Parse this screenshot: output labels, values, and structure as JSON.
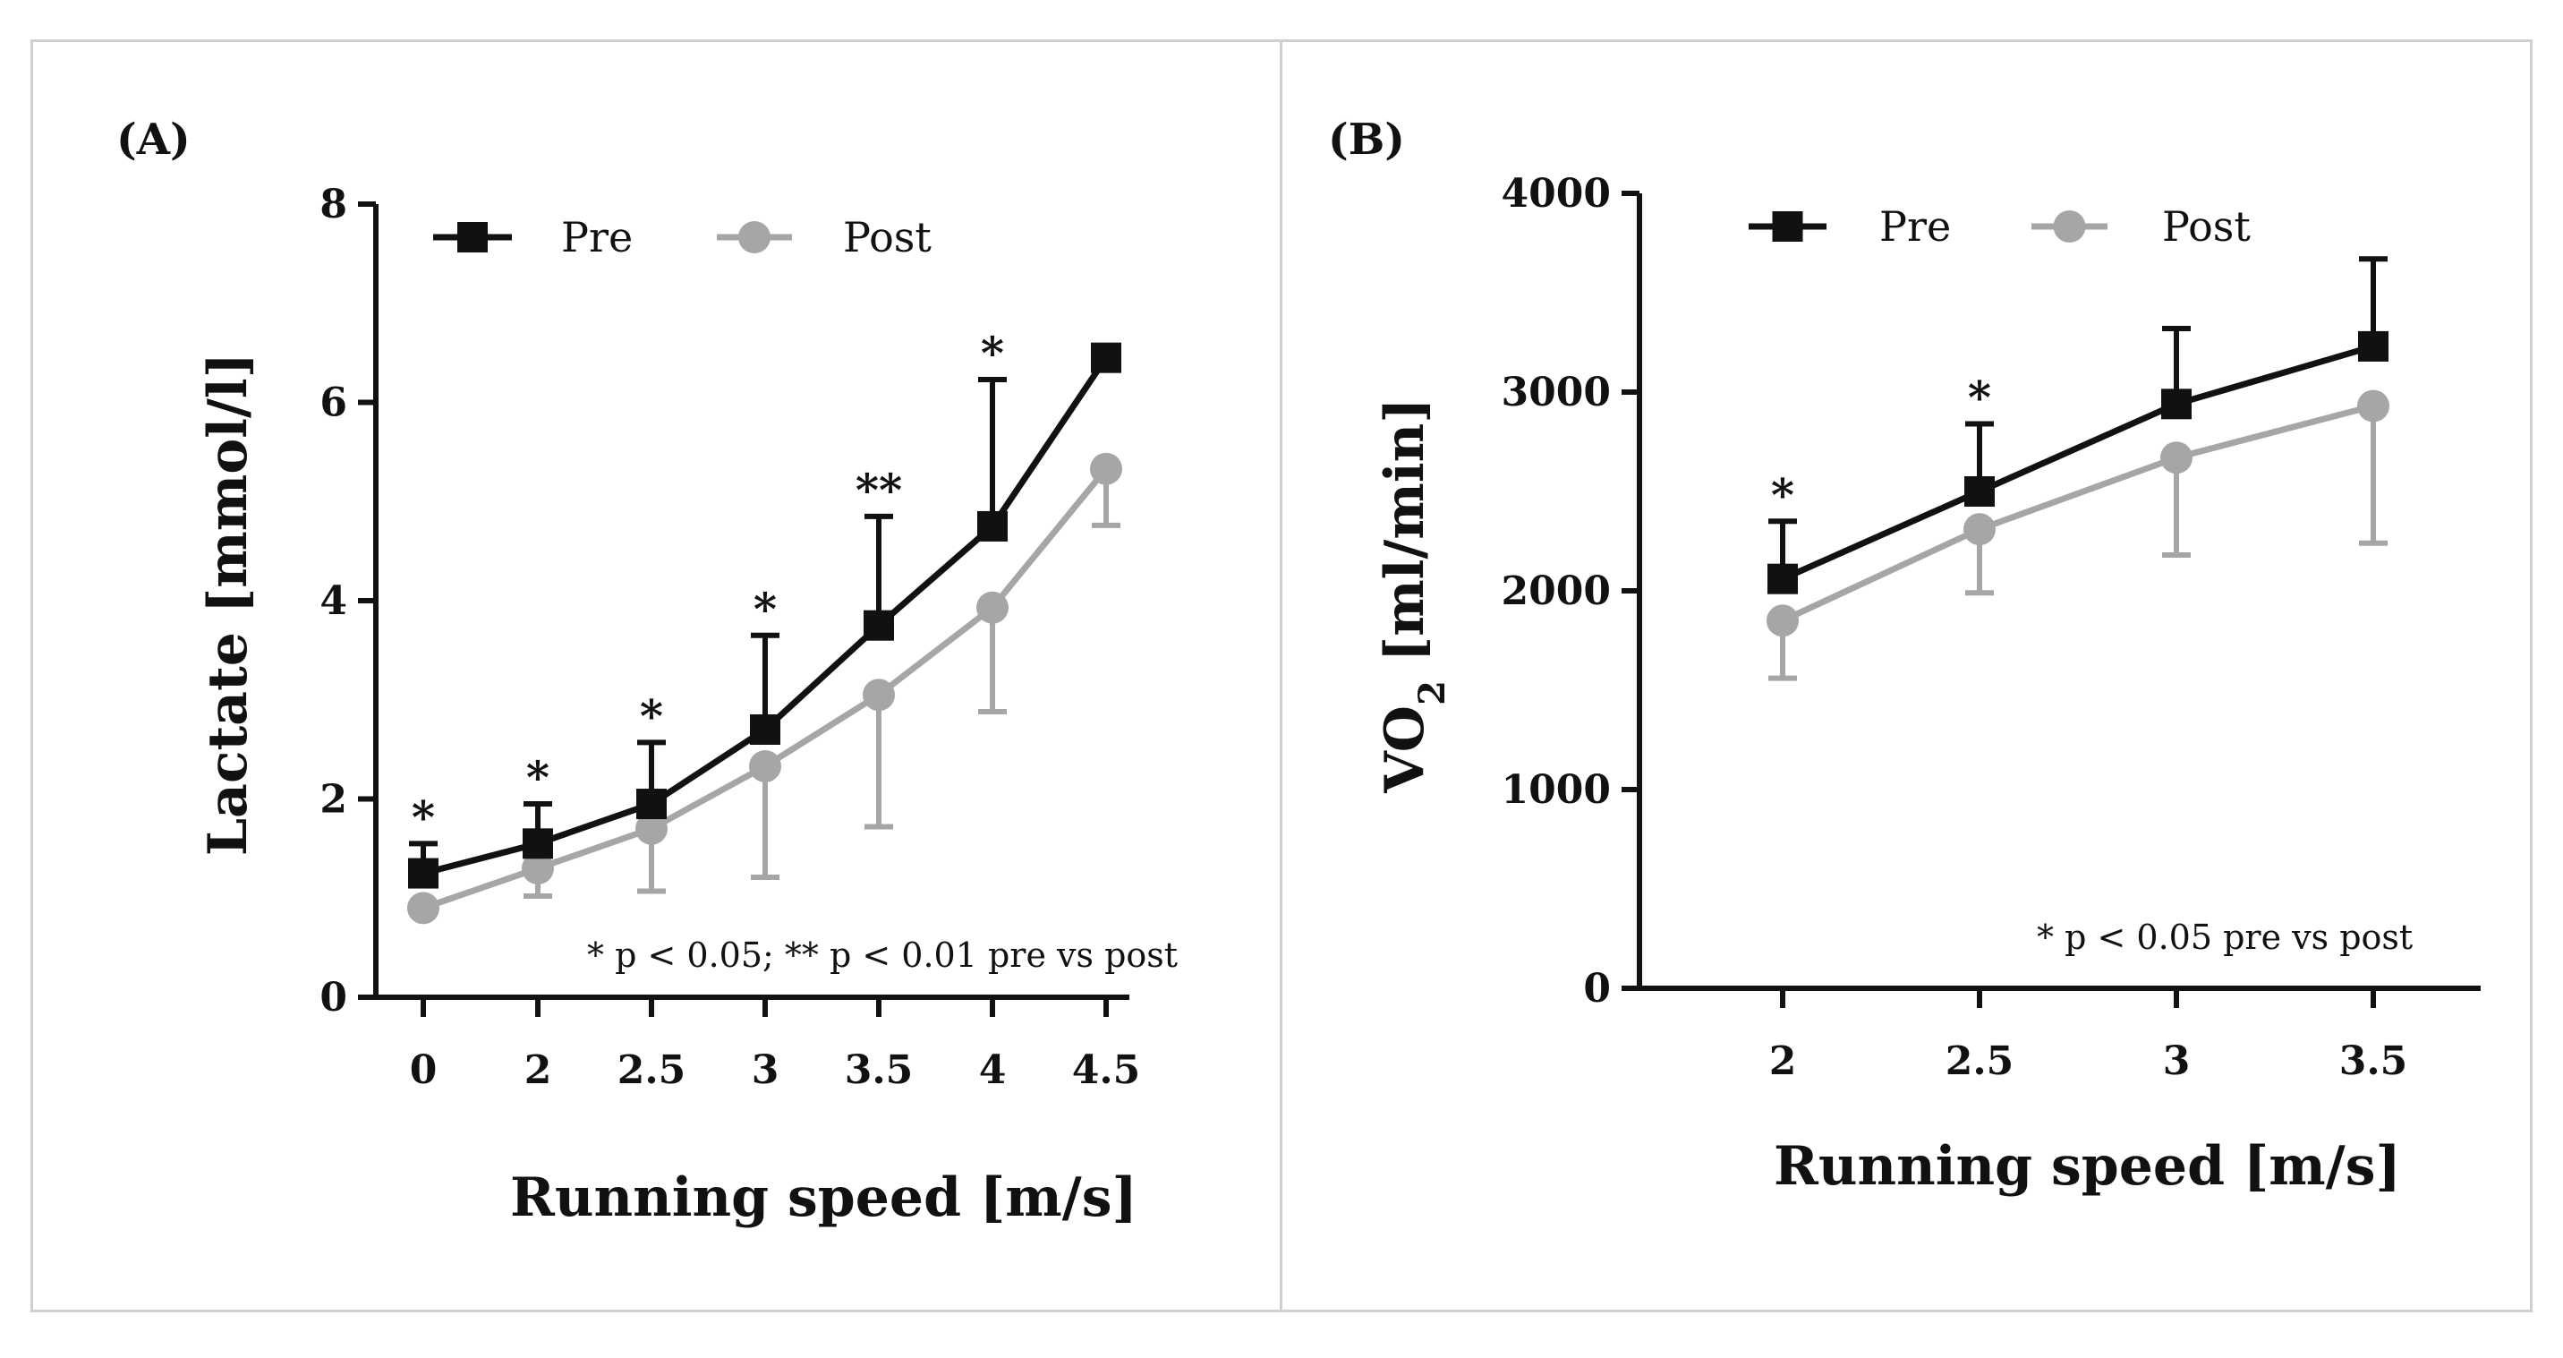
{
  "chart_data": [
    {
      "type": "line",
      "panel_label": "(A)",
      "xlabel": "Running speed [m/s]",
      "ylabel": "Lactate [mmol/l]",
      "categories": [
        "0",
        "2",
        "2.5",
        "3",
        "3.5",
        "4",
        "4.5"
      ],
      "y_ticks": [
        "0",
        "2",
        "4",
        "6",
        "8"
      ],
      "ylim": [
        0,
        8
      ],
      "series": [
        {
          "name": "Pre",
          "color": "#111111",
          "marker": "square",
          "values": [
            1.25,
            1.55,
            1.95,
            2.7,
            3.75,
            4.75,
            6.45
          ],
          "errors": [
            0.3,
            0.4,
            0.62,
            0.95,
            1.1,
            1.48,
            0
          ]
        },
        {
          "name": "Post",
          "color": "#a6a6a6",
          "marker": "circle",
          "values": [
            0.9,
            1.3,
            1.7,
            2.33,
            3.05,
            3.93,
            5.33
          ],
          "errors": [
            0,
            0.28,
            0.63,
            1.12,
            1.33,
            1.05,
            0.57
          ]
        }
      ],
      "significance": [
        "*",
        "*",
        "*",
        "*",
        "**",
        "*",
        ""
      ],
      "note": "* p < 0.05; ** p < 0.01  pre vs post",
      "legend": "top-left"
    },
    {
      "type": "line",
      "panel_label": "(B)",
      "xlabel": "Running speed [m/s]",
      "ylabel_main": "VO",
      "ylabel_sub": "2",
      "ylabel_rest": " [ml/min]",
      "categories": [
        "2",
        "2.5",
        "3",
        "3.5"
      ],
      "y_ticks": [
        "0",
        "1000",
        "2000",
        "3000",
        "4000"
      ],
      "ylim": [
        0,
        4000
      ],
      "series": [
        {
          "name": "Pre",
          "color": "#111111",
          "marker": "square",
          "values": [
            2060,
            2500,
            2940,
            3230
          ],
          "errors": [
            290,
            340,
            380,
            440
          ]
        },
        {
          "name": "Post",
          "color": "#a6a6a6",
          "marker": "circle",
          "values": [
            1850,
            2310,
            2670,
            2930
          ],
          "errors": [
            290,
            320,
            490,
            690
          ]
        }
      ],
      "significance": [
        "*",
        "*",
        "",
        ""
      ],
      "note": "* p < 0.05 pre vs post",
      "legend": "top-left"
    }
  ]
}
